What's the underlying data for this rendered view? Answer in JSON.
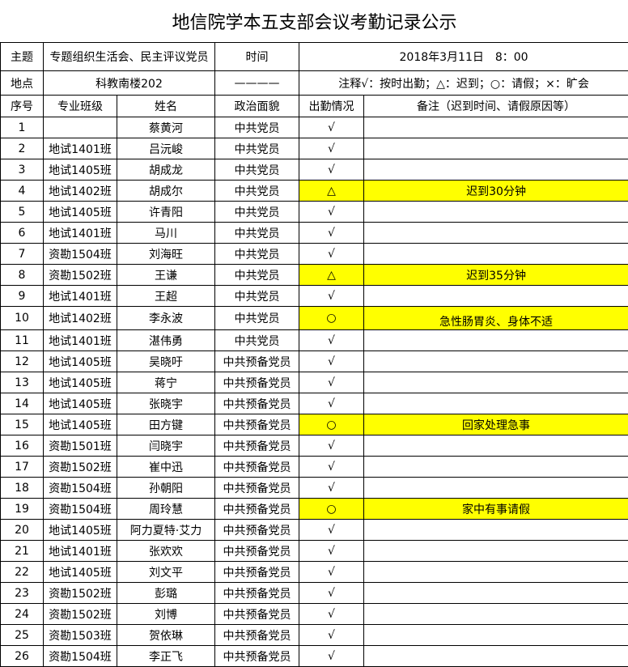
{
  "title": "地信院学本五支部会议考勤记录公示",
  "info": {
    "topic_label": "主题",
    "topic_value": "专题组织生活会、民主评议党员",
    "time_label": "时间",
    "time_value": "2018年3月11日　8：00",
    "place_label": "地点",
    "place_value": "科教南楼202",
    "dash": "————",
    "legend": "注释√：按时出勤；△：迟到；○：请假；×：旷会"
  },
  "columns": [
    "序号",
    "专业班级",
    "姓名",
    "政治面貌",
    "出勤情况",
    "备注（迟到时间、请假原因等）"
  ],
  "highlight_color": "#ffff00",
  "rows": [
    {
      "no": "1",
      "cls": "",
      "name": "蔡黄河",
      "pol": "中共党员",
      "att": "√",
      "note": ""
    },
    {
      "no": "2",
      "cls": "地试1401班",
      "name": "吕沅峻",
      "pol": "中共党员",
      "att": "√",
      "note": ""
    },
    {
      "no": "3",
      "cls": "地试1405班",
      "name": "胡成龙",
      "pol": "中共党员",
      "att": "√",
      "note": ""
    },
    {
      "no": "4",
      "cls": "地试1402班",
      "name": "胡成尔",
      "pol": "中共党员",
      "att": "△",
      "note": "迟到30分钟"
    },
    {
      "no": "5",
      "cls": "地试1405班",
      "name": "许青阳",
      "pol": "中共党员",
      "att": "√",
      "note": ""
    },
    {
      "no": "6",
      "cls": "地试1401班",
      "name": "马川",
      "pol": "中共党员",
      "att": "√",
      "note": ""
    },
    {
      "no": "7",
      "cls": "资勘1504班",
      "name": "刘海旺",
      "pol": "中共党员",
      "att": "√",
      "note": ""
    },
    {
      "no": "8",
      "cls": "资勘1502班",
      "name": "王谦",
      "pol": "中共党员",
      "att": "△",
      "note": "迟到35分钟"
    },
    {
      "no": "9",
      "cls": "地试1401班",
      "name": "王超",
      "pol": "中共党员",
      "att": "√",
      "note": ""
    },
    {
      "no": "10",
      "cls": "地试1402班",
      "name": "李永波",
      "pol": "中共党员",
      "att": "○",
      "note": "急性肠胃炎、身体不适"
    },
    {
      "no": "11",
      "cls": "地试1401班",
      "name": "湛伟勇",
      "pol": "中共党员",
      "att": "√",
      "note": ""
    },
    {
      "no": "12",
      "cls": "地试1405班",
      "name": "吴晓吁",
      "pol": "中共预备党员",
      "att": "√",
      "note": ""
    },
    {
      "no": "13",
      "cls": "地试1405班",
      "name": "蒋宁",
      "pol": "中共预备党员",
      "att": "√",
      "note": ""
    },
    {
      "no": "14",
      "cls": "地试1405班",
      "name": "张晓宇",
      "pol": "中共预备党员",
      "att": "√",
      "note": ""
    },
    {
      "no": "15",
      "cls": "地试1405班",
      "name": "田方键",
      "pol": "中共预备党员",
      "att": "○",
      "note": "回家处理急事"
    },
    {
      "no": "16",
      "cls": "资勘1501班",
      "name": "闫晓宇",
      "pol": "中共预备党员",
      "att": "√",
      "note": ""
    },
    {
      "no": "17",
      "cls": "资勘1502班",
      "name": "崔中迅",
      "pol": "中共预备党员",
      "att": "√",
      "note": ""
    },
    {
      "no": "18",
      "cls": "资勘1504班",
      "name": "孙朝阳",
      "pol": "中共预备党员",
      "att": "√",
      "note": ""
    },
    {
      "no": "19",
      "cls": "资勘1504班",
      "name": "周玲慧",
      "pol": "中共预备党员",
      "att": "○",
      "note": "家中有事请假"
    },
    {
      "no": "20",
      "cls": "地试1405班",
      "name": "阿力夏特·艾力",
      "pol": "中共预备党员",
      "att": "√",
      "note": ""
    },
    {
      "no": "21",
      "cls": "地试1401班",
      "name": "张欢欢",
      "pol": "中共预备党员",
      "att": "√",
      "note": ""
    },
    {
      "no": "22",
      "cls": "地试1405班",
      "name": "刘文平",
      "pol": "中共预备党员",
      "att": "√",
      "note": ""
    },
    {
      "no": "23",
      "cls": "资勘1502班",
      "name": "彭璐",
      "pol": "中共预备党员",
      "att": "√",
      "note": ""
    },
    {
      "no": "24",
      "cls": "资勘1502班",
      "name": "刘博",
      "pol": "中共预备党员",
      "att": "√",
      "note": ""
    },
    {
      "no": "25",
      "cls": "资勘1503班",
      "name": "贺依琳",
      "pol": "中共预备党员",
      "att": "√",
      "note": ""
    },
    {
      "no": "26",
      "cls": "资勘1504班",
      "name": "李正飞",
      "pol": "中共预备党员",
      "att": "√",
      "note": ""
    }
  ]
}
